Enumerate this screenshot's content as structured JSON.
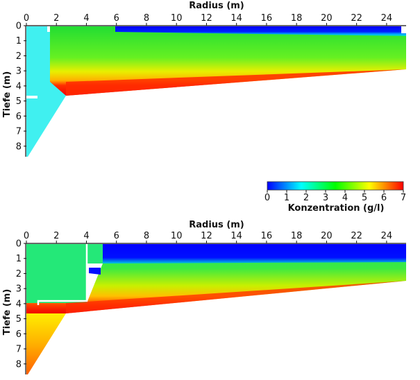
{
  "chart_data": [
    {
      "type": "heatmap",
      "panel": "top",
      "xlabel": "Radius (m)",
      "ylabel": "Tiefe (m)",
      "xlim": [
        0,
        25.3
      ],
      "ylim": [
        0,
        8.7
      ],
      "x_ticks": [
        0,
        2,
        4,
        6,
        8,
        10,
        12,
        14,
        16,
        18,
        20,
        22,
        24
      ],
      "y_ticks": [
        0,
        1,
        2,
        3,
        4,
        5,
        6,
        7,
        8
      ],
      "regions": [
        {
          "description": "inlet column",
          "x_range": [
            0,
            2.5
          ],
          "concentration": 1.5
        },
        {
          "description": "surface layer",
          "x_range": [
            5.8,
            25.3
          ],
          "depth_range": [
            0,
            0.5
          ],
          "concentration": 0.2
        },
        {
          "description": "middle zone",
          "x_range": [
            2.5,
            25.3
          ],
          "depth_range": [
            0.5,
            2.8
          ],
          "concentration": 3.8
        },
        {
          "description": "bottom layer",
          "x_range": [
            2.5,
            25.3
          ],
          "depth_range": [
            3.0,
            4.5
          ],
          "concentration": 6.5
        }
      ]
    },
    {
      "type": "heatmap",
      "panel": "bottom",
      "xlabel": "Radius (m)",
      "ylabel": "Tiefe (m)",
      "xlim": [
        0,
        25.3
      ],
      "ylim": [
        0,
        8.7
      ],
      "x_ticks": [
        0,
        2,
        4,
        6,
        8,
        10,
        12,
        14,
        16,
        18,
        20,
        22,
        24
      ],
      "y_ticks": [
        0,
        1,
        2,
        3,
        4,
        5,
        6,
        7,
        8
      ],
      "regions": [
        {
          "description": "inlet block",
          "x_range": [
            0,
            4
          ],
          "depth_range": [
            0,
            3.8
          ],
          "concentration": 3.5
        },
        {
          "description": "surface layer",
          "x_range": [
            5,
            25.3
          ],
          "depth_range": [
            0,
            1.3
          ],
          "concentration": 0.2
        },
        {
          "description": "middle zone",
          "x_range": [
            5,
            25.3
          ],
          "depth_range": [
            1.3,
            2.5
          ],
          "concentration": 3.5
        },
        {
          "description": "bottom layer",
          "x_range": [
            2.5,
            25.3
          ],
          "depth_range": [
            3.0,
            4.5
          ],
          "concentration": 6.5
        }
      ]
    }
  ],
  "colorbar": {
    "title": "Konzentration (g/l)",
    "min": 0,
    "max": 7,
    "ticks": [
      "0",
      "1",
      "2",
      "3",
      "4",
      "5",
      "6",
      "7"
    ],
    "colors": [
      "#0000ff",
      "#00ffff",
      "#00ff00",
      "#ffff00",
      "#ff0000"
    ]
  }
}
